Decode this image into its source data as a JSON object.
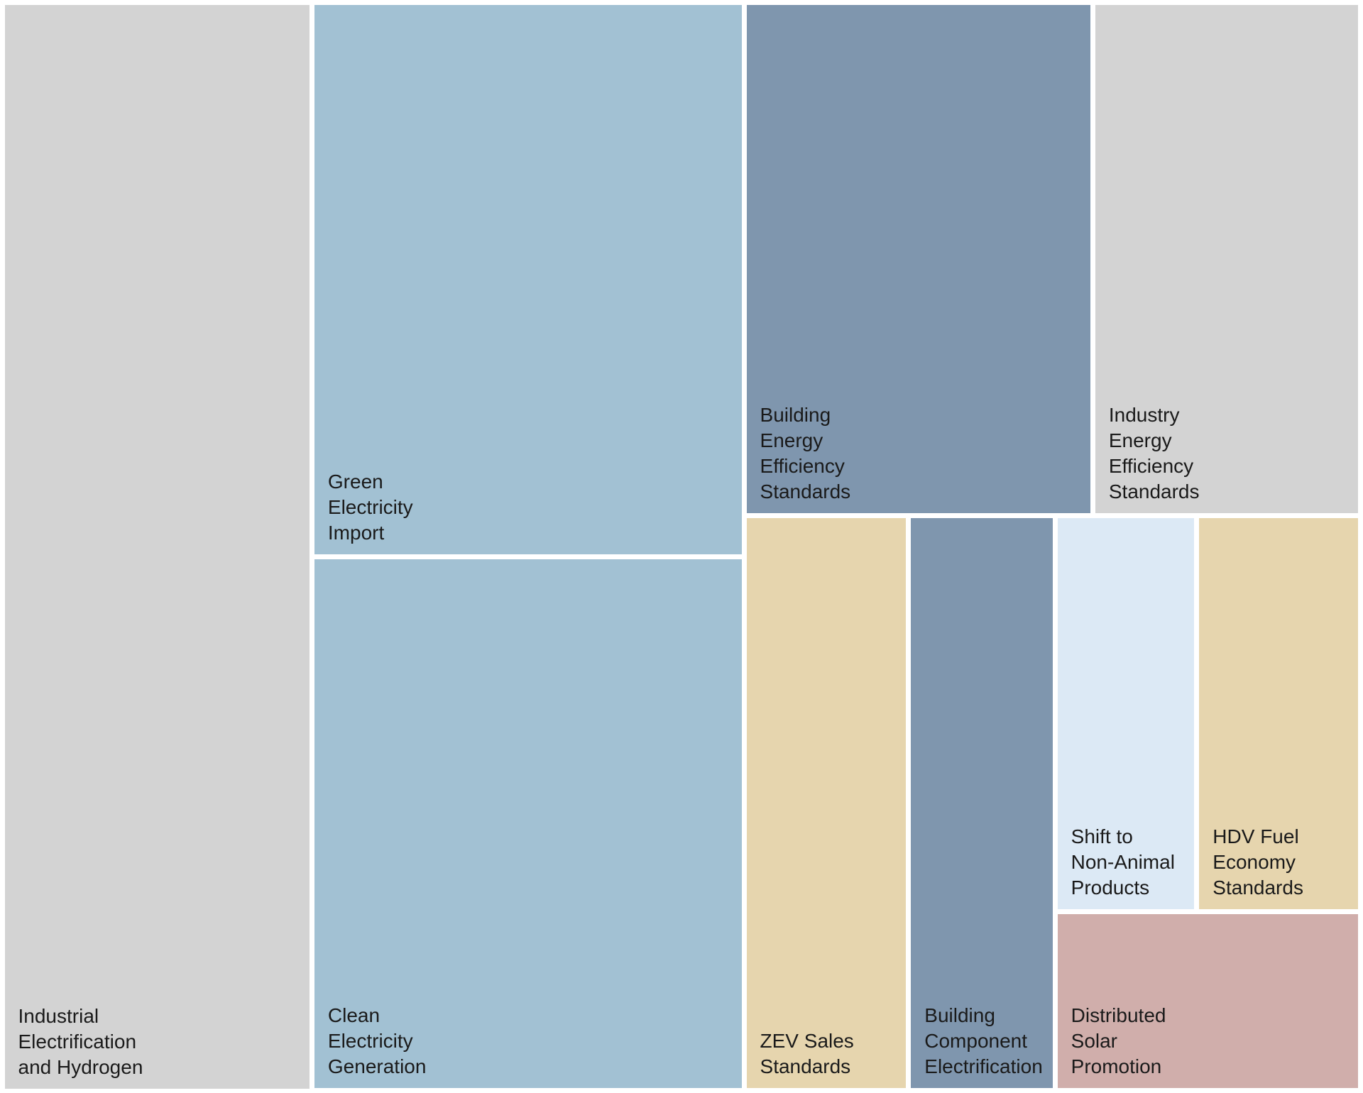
{
  "chart_data": {
    "type": "treemap",
    "labels": [
      "Industrial\nElectrification\nand Hydrogen",
      "Green\nElectricity\nImport",
      "Clean\nElectricity\nGeneration",
      "Building\nEnergy\nEfficiency\nStandards",
      "Industry\nEnergy\nEfficiency\nStandards",
      "ZEV Sales\nStandards",
      "Building\nComponent\nElectrification",
      "Shift to\nNon-Animal\nProducts",
      "HDV Fuel\nEconomy\nStandards",
      "Distributed\nSolar\nPromotion"
    ],
    "values": [
      22.8,
      16.2,
      15.6,
      12.1,
      9.3,
      6.4,
      5.7,
      3.8,
      4.4,
      3.7
    ],
    "colors": [
      "#d3d3d3",
      "#a2c1d3",
      "#a2c1d3",
      "#7f96ae",
      "#d3d3d3",
      "#e6d5ae",
      "#7f96ae",
      "#dce9f5",
      "#e6d5ae",
      "#d0aeab"
    ]
  }
}
